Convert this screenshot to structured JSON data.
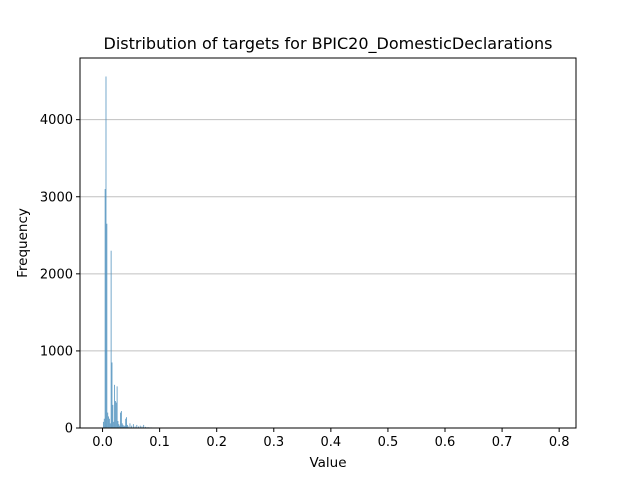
{
  "chart_data": {
    "type": "bar",
    "title": "Distribution of targets for BPIC20_DomesticDeclarations",
    "xlabel": "Value",
    "ylabel": "Frequency",
    "xlim": [
      -0.0395,
      0.8295
    ],
    "ylim": [
      0,
      4800
    ],
    "xticks": [
      0.0,
      0.1,
      0.2,
      0.3,
      0.4,
      0.5,
      0.6,
      0.7,
      0.8
    ],
    "xtick_labels": [
      "0.0",
      "0.1",
      "0.2",
      "0.3",
      "0.4",
      "0.5",
      "0.6",
      "0.7",
      "0.8"
    ],
    "yticks": [
      0,
      1000,
      2000,
      3000,
      4000
    ],
    "ytick_labels": [
      "0",
      "1000",
      "2000",
      "3000",
      "4000"
    ],
    "grid": "y",
    "bar_color": "#4c8fbd",
    "bin_width": 0.0015,
    "x": [
      0.0015,
      0.003,
      0.0045,
      0.006,
      0.0075,
      0.009,
      0.0105,
      0.012,
      0.0135,
      0.015,
      0.0165,
      0.018,
      0.0195,
      0.021,
      0.0225,
      0.024,
      0.0255,
      0.027,
      0.0285,
      0.03,
      0.0315,
      0.033,
      0.0345,
      0.036,
      0.0375,
      0.039,
      0.0405,
      0.042,
      0.0435,
      0.045,
      0.048,
      0.051,
      0.054,
      0.057,
      0.06,
      0.063,
      0.066,
      0.069,
      0.072,
      0.075,
      0.078,
      0.081,
      0.085,
      0.09,
      0.1,
      0.12
    ],
    "values": [
      80,
      120,
      3100,
      4560,
      2650,
      200,
      150,
      120,
      60,
      2300,
      850,
      300,
      80,
      560,
      350,
      330,
      540,
      90,
      50,
      30,
      200,
      220,
      60,
      40,
      20,
      30,
      120,
      140,
      40,
      20,
      60,
      30,
      50,
      20,
      40,
      20,
      30,
      20,
      40,
      15,
      10,
      10,
      8,
      5,
      3,
      2
    ]
  }
}
